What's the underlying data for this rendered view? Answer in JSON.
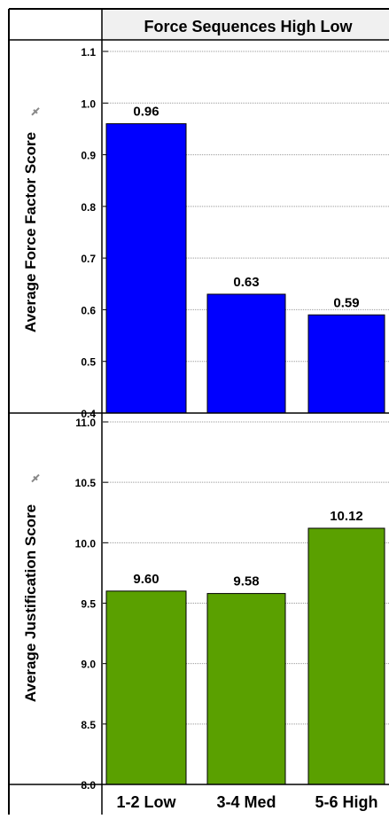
{
  "header": {
    "title": "Force Sequences High Low"
  },
  "categories": [
    "1-2 Low",
    "3-4 Med",
    "5-6 High"
  ],
  "colors": {
    "panel1_bar": "#0000ff",
    "panel2_bar": "#5aa000",
    "header_bg": "#f0f0f0",
    "grid": "#999999",
    "border": "#000000"
  },
  "icons": {
    "pin": "pin-icon"
  },
  "chart_data": [
    {
      "type": "bar",
      "categories": [
        "1-2 Low",
        "3-4 Med",
        "5-6 High"
      ],
      "values": [
        0.96,
        0.63,
        0.59
      ],
      "labels": [
        "0.96",
        "0.63",
        "0.59"
      ],
      "title": "Force Sequences High Low",
      "xlabel": "",
      "ylabel": "Average Force Factor Score",
      "ylim": [
        0.4,
        1.1
      ],
      "yticks": [
        "0.4",
        "0.5",
        "0.6",
        "0.7",
        "0.8",
        "0.9",
        "1.0",
        "1.1"
      ],
      "grid": true
    },
    {
      "type": "bar",
      "categories": [
        "1-2 Low",
        "3-4 Med",
        "5-6 High"
      ],
      "values": [
        9.6,
        9.58,
        10.12
      ],
      "labels": [
        "9.60",
        "9.58",
        "10.12"
      ],
      "title": "Force Sequences High Low",
      "xlabel": "",
      "ylabel": "Average Justification Score",
      "ylim": [
        8.0,
        11.0
      ],
      "yticks": [
        "8.0",
        "8.5",
        "9.0",
        "9.5",
        "10.0",
        "10.5",
        "11.0"
      ],
      "grid": true
    }
  ]
}
